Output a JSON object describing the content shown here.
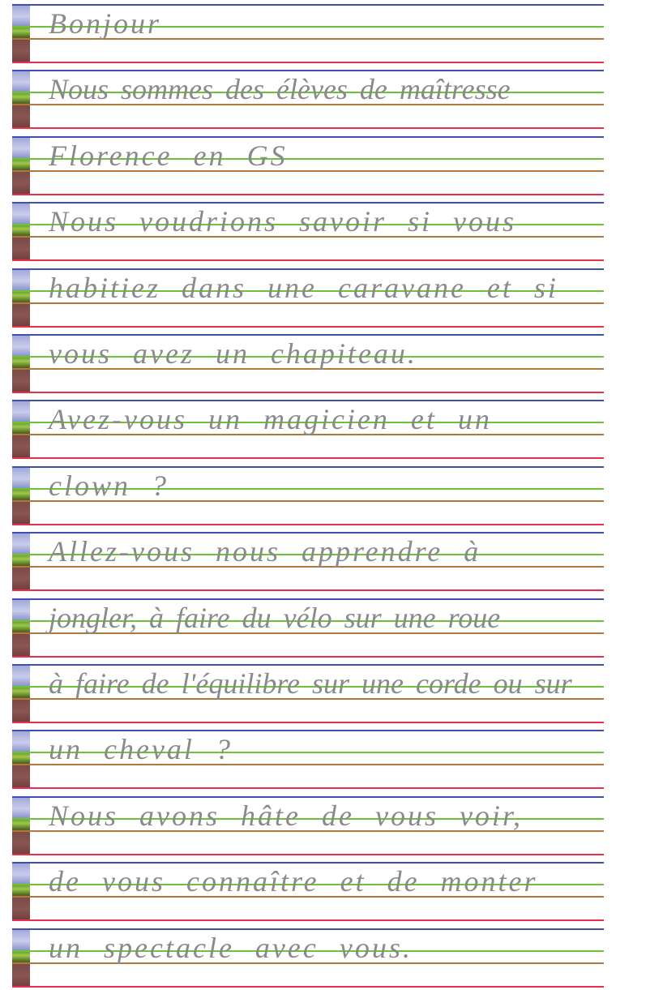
{
  "letter": {
    "lines": [
      "Bonjour",
      "Nous sommes des élèves de maîtresse",
      "Florence en GS",
      "Nous voudrions savoir si vous",
      "habitiez dans une caravane et si",
      "vous avez un chapiteau.",
      "Avez-vous un magicien et un",
      "clown ?",
      "Allez-vous nous apprendre à",
      "jongler, à faire du vélo sur une roue",
      "à faire de l'équilibre sur une corde ou sur",
      "un cheval ?",
      "Nous avons hâte de vous voir,",
      "de vous connaître et de monter",
      "un spectacle avec vous."
    ]
  },
  "colors": {
    "line_top": "#3f4fae",
    "line_mid": "#6cc23a",
    "line_base": "#b0763a",
    "line_bottom": "#e8304e",
    "pencil": "#8a8a8a"
  }
}
